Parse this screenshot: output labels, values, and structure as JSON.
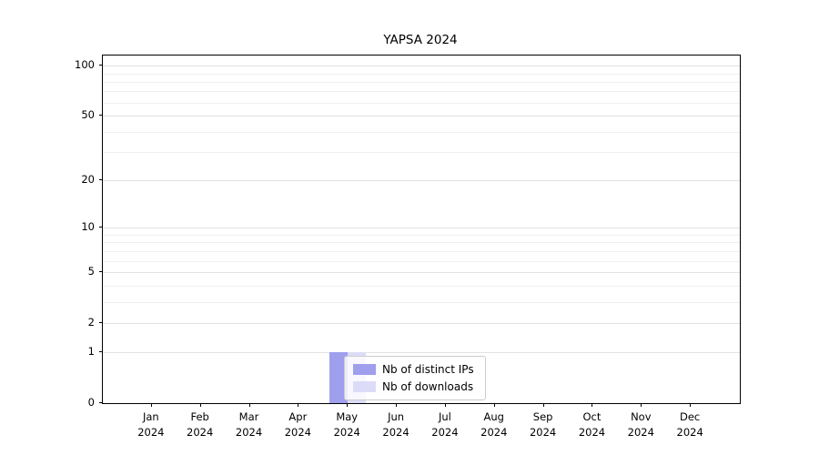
{
  "chart_data": {
    "type": "bar",
    "title": "YAPSA 2024",
    "categories": [
      "Jan",
      "Feb",
      "Mar",
      "Apr",
      "May",
      "Jun",
      "Jul",
      "Aug",
      "Sep",
      "Oct",
      "Nov",
      "Dec"
    ],
    "x_year": "2024",
    "series": [
      {
        "name": "Nb of distinct IPs",
        "color": "#9f9fee",
        "values": [
          0,
          0,
          0,
          0,
          1,
          0,
          0,
          0,
          0,
          0,
          0,
          0
        ]
      },
      {
        "name": "Nb of downloads",
        "color": "#dcdcf8",
        "values": [
          0,
          0,
          0,
          0,
          1,
          0,
          0,
          0,
          0,
          0,
          0,
          0
        ]
      }
    ],
    "y_ticks": [
      0,
      1,
      2,
      5,
      10,
      20,
      50,
      100
    ],
    "y_minor_ticks": [
      3,
      4,
      6,
      7,
      8,
      9,
      30,
      40,
      60,
      70,
      80,
      90
    ],
    "y_scale": "log1p",
    "y_max": 115,
    "ylim": [
      0,
      115
    ],
    "grid": true,
    "legend_position": "bottom-center"
  }
}
